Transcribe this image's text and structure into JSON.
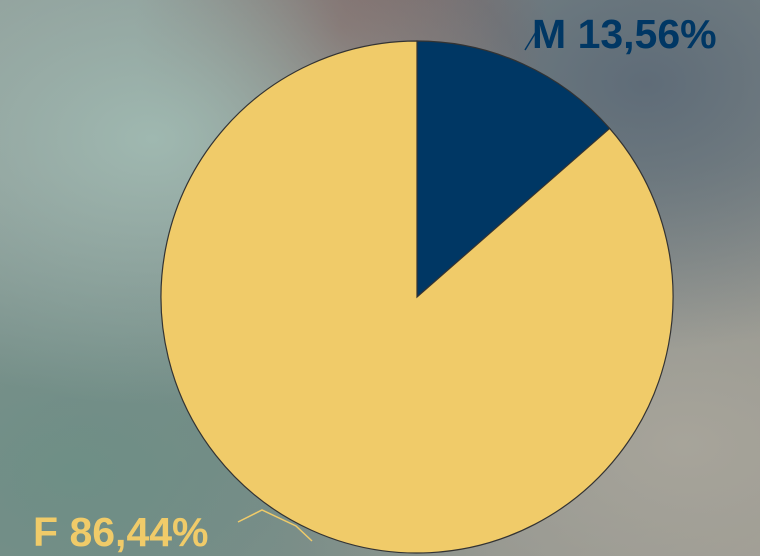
{
  "chart_data": {
    "type": "pie",
    "categories": [
      "M",
      "F"
    ],
    "values": [
      13.56,
      86.44
    ],
    "value_labels": [
      "13,56%",
      "86,44%"
    ],
    "colors": [
      "#003764",
      "#f0cb69"
    ]
  }
}
